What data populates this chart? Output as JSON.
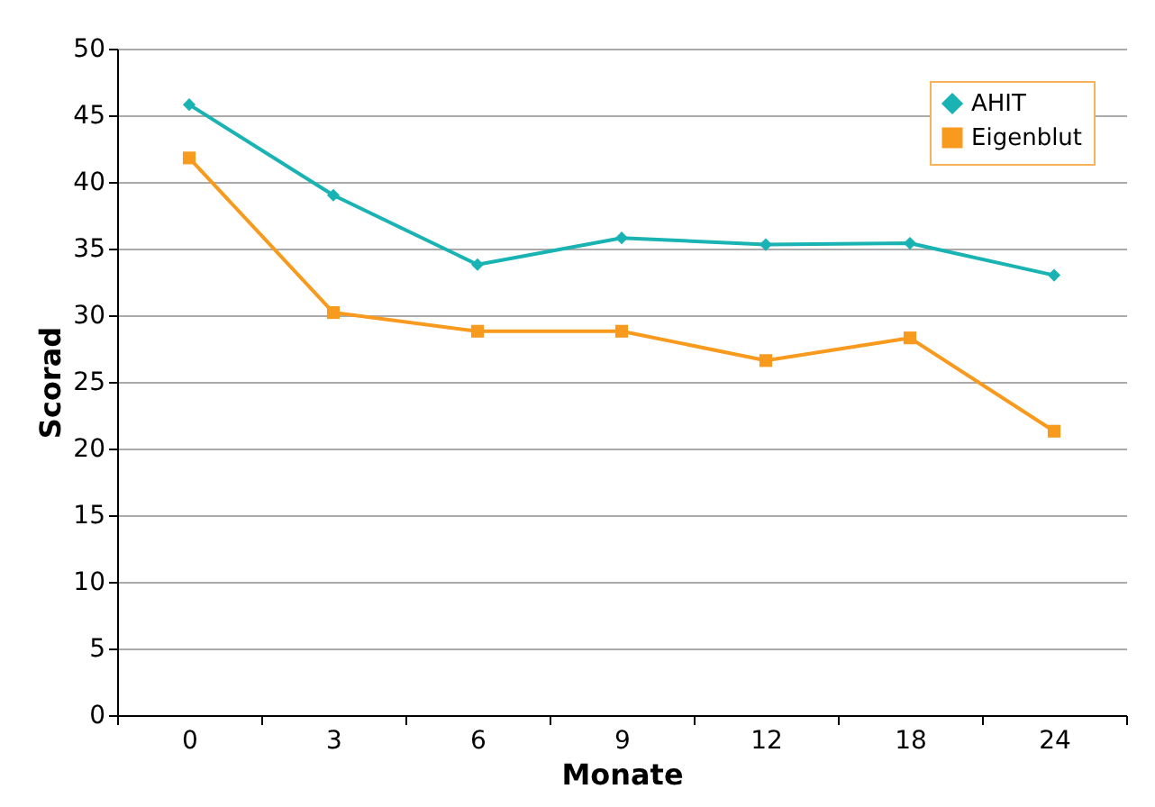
{
  "chart_data": {
    "type": "line",
    "xlabel": "Monate",
    "ylabel": "Scorad",
    "categories": [
      "0",
      "3",
      "6",
      "9",
      "12",
      "18",
      "24"
    ],
    "series": [
      {
        "name": "AHIT",
        "color": "#1ab3b3",
        "marker": "diamond",
        "values": [
          45.8,
          39.0,
          33.8,
          35.8,
          35.3,
          35.4,
          33.0
        ]
      },
      {
        "name": "Eigenblut",
        "color": "#f79a1e",
        "marker": "square",
        "values": [
          41.8,
          30.2,
          28.8,
          28.8,
          26.6,
          28.3,
          21.3
        ]
      }
    ],
    "ylim": [
      0,
      50
    ],
    "yticks": [
      0,
      5,
      10,
      15,
      20,
      25,
      30,
      35,
      40,
      45,
      50
    ],
    "grid": "y",
    "legend": "top right",
    "line_style": "solid"
  }
}
